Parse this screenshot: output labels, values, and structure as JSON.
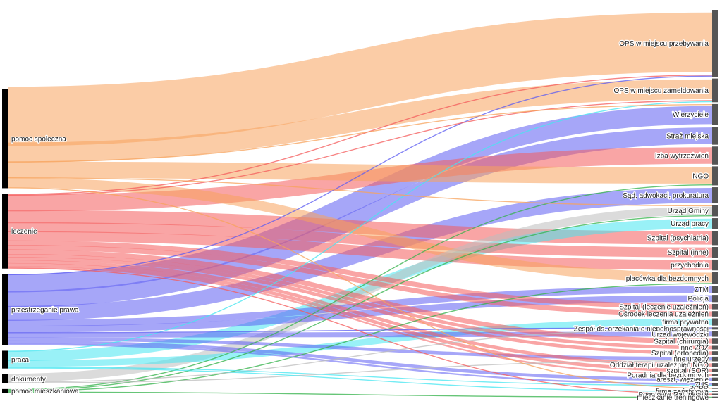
{
  "sources": [
    {
      "id": "pomoc",
      "label": "pomoc społeczna",
      "color": "#f7a35c"
    },
    {
      "id": "leczenie",
      "label": "leczenie",
      "color": "#f45b5b"
    },
    {
      "id": "prawo",
      "label": "przestrzeganie prawa",
      "color": "#5c5cf2"
    },
    {
      "id": "praca",
      "label": "praca",
      "color": "#46e6f0"
    },
    {
      "id": "dokumenty",
      "label": "dokumenty",
      "color": "#bdbdbd"
    },
    {
      "id": "mieszk",
      "label": "pomoc mieszkaniowa",
      "color": "#33b24a"
    }
  ],
  "targets": [
    {
      "id": "t1",
      "label": "OPS w miejscu przebywania"
    },
    {
      "id": "t2",
      "label": "OPS w miejscu zameldowania"
    },
    {
      "id": "t3",
      "label": "Wierzyciele"
    },
    {
      "id": "t4",
      "label": "Straż miejska"
    },
    {
      "id": "t5",
      "label": "Izba wytrzeźwień"
    },
    {
      "id": "t6",
      "label": "NGO"
    },
    {
      "id": "t7",
      "label": "Sąd, adwokaci, prokuratura"
    },
    {
      "id": "t8",
      "label": "Urząd Gminy"
    },
    {
      "id": "t9",
      "label": "Urząd pracy"
    },
    {
      "id": "t10",
      "label": "Szpital (psychiatria)"
    },
    {
      "id": "t11",
      "label": "Szpital (inne)"
    },
    {
      "id": "t12",
      "label": "przychodnia"
    },
    {
      "id": "t13",
      "label": "placówka dla bezdomnych"
    },
    {
      "id": "t14",
      "label": "ZTM"
    },
    {
      "id": "t15",
      "label": "Policja"
    },
    {
      "id": "t16",
      "label": "Szpital (leczenie uzależnień)"
    },
    {
      "id": "t17",
      "label": "Ośrodek leczenia uzależnień"
    },
    {
      "id": "t18",
      "label": "firma prywatna"
    },
    {
      "id": "t19",
      "label": "Zespół ds. orzekania o niepełnosprawności"
    },
    {
      "id": "t20",
      "label": "Urząd wojewódzki"
    },
    {
      "id": "t21",
      "label": "Szpital (chirurgia)"
    },
    {
      "id": "t22",
      "label": "inne ZOZ"
    },
    {
      "id": "t23",
      "label": "Szpital (ortopedia)"
    },
    {
      "id": "t24",
      "label": "inne urzędy"
    },
    {
      "id": "t25",
      "label": "Oddział terapii uzależnień NGO"
    },
    {
      "id": "t26",
      "label": "szpital (SOR)"
    },
    {
      "id": "t27",
      "label": "Poradnia dla bezdomnych"
    },
    {
      "id": "t28",
      "label": "areszt, więzienie"
    },
    {
      "id": "t29",
      "label": "ZUS"
    },
    {
      "id": "t30",
      "label": "PCPR"
    },
    {
      "id": "t31",
      "label": "firma państwowa"
    },
    {
      "id": "t32",
      "label": "Pogotowie Ratunkowe"
    },
    {
      "id": "t33",
      "label": "mieszkanie treningowe"
    }
  ],
  "flows": [
    {
      "from": "pomoc",
      "to": "t1",
      "value": 36
    },
    {
      "from": "pomoc",
      "to": "t2",
      "value": 12
    },
    {
      "from": "pomoc",
      "to": "t6",
      "value": 10
    },
    {
      "from": "pomoc",
      "to": "t13",
      "value": 6
    },
    {
      "from": "pomoc",
      "to": "t8",
      "value": 0.6
    },
    {
      "from": "pomoc",
      "to": "t3",
      "value": 0.6
    },
    {
      "from": "pomoc",
      "to": "t30",
      "value": 0.6
    },
    {
      "from": "leczenie",
      "to": "t5",
      "value": 10
    },
    {
      "from": "leczenie",
      "to": "t10",
      "value": 8
    },
    {
      "from": "leczenie",
      "to": "t11",
      "value": 6
    },
    {
      "from": "leczenie",
      "to": "t12",
      "value": 6
    },
    {
      "from": "leczenie",
      "to": "t16",
      "value": 3
    },
    {
      "from": "leczenie",
      "to": "t17",
      "value": 3
    },
    {
      "from": "leczenie",
      "to": "t21",
      "value": 3
    },
    {
      "from": "leczenie",
      "to": "t22",
      "value": 2
    },
    {
      "from": "leczenie",
      "to": "t23",
      "value": 2
    },
    {
      "from": "leczenie",
      "to": "t25",
      "value": 2
    },
    {
      "from": "leczenie",
      "to": "t26",
      "value": 2
    },
    {
      "from": "leczenie",
      "to": "t27",
      "value": 1
    },
    {
      "from": "leczenie",
      "to": "t32",
      "value": 0.6
    },
    {
      "from": "leczenie",
      "to": "t2",
      "value": 0.6
    },
    {
      "from": "leczenie",
      "to": "t1",
      "value": 0.6
    },
    {
      "from": "prawo",
      "to": "t3",
      "value": 11
    },
    {
      "from": "prawo",
      "to": "t4",
      "value": 10
    },
    {
      "from": "prawo",
      "to": "t7",
      "value": 9
    },
    {
      "from": "prawo",
      "to": "t14",
      "value": 4
    },
    {
      "from": "prawo",
      "to": "t15",
      "value": 4
    },
    {
      "from": "prawo",
      "to": "t20",
      "value": 3
    },
    {
      "from": "prawo",
      "to": "t24",
      "value": 2
    },
    {
      "from": "prawo",
      "to": "t28",
      "value": 2
    },
    {
      "from": "prawo",
      "to": "t29",
      "value": 1
    },
    {
      "from": "prawo",
      "to": "t19",
      "value": 0.6
    },
    {
      "from": "prawo",
      "to": "t1",
      "value": 0.6
    },
    {
      "from": "praca",
      "to": "t9",
      "value": 6
    },
    {
      "from": "praca",
      "to": "t18",
      "value": 4
    },
    {
      "from": "praca",
      "to": "t31",
      "value": 0.6
    },
    {
      "from": "praca",
      "to": "t29",
      "value": 0.6
    },
    {
      "from": "praca",
      "to": "t2",
      "value": 0.6
    },
    {
      "from": "dokumenty",
      "to": "t8",
      "value": 5
    },
    {
      "from": "dokumenty",
      "to": "t19",
      "value": 0.6
    },
    {
      "from": "dokumenty",
      "to": "t24",
      "value": 0.6
    },
    {
      "from": "mieszk",
      "to": "t33",
      "value": 0.6
    },
    {
      "from": "mieszk",
      "to": "t8",
      "value": 0.6
    },
    {
      "from": "mieszk",
      "to": "t6",
      "value": 0.6
    },
    {
      "from": "mieszk",
      "to": "t13",
      "value": 0.6
    }
  ]
}
